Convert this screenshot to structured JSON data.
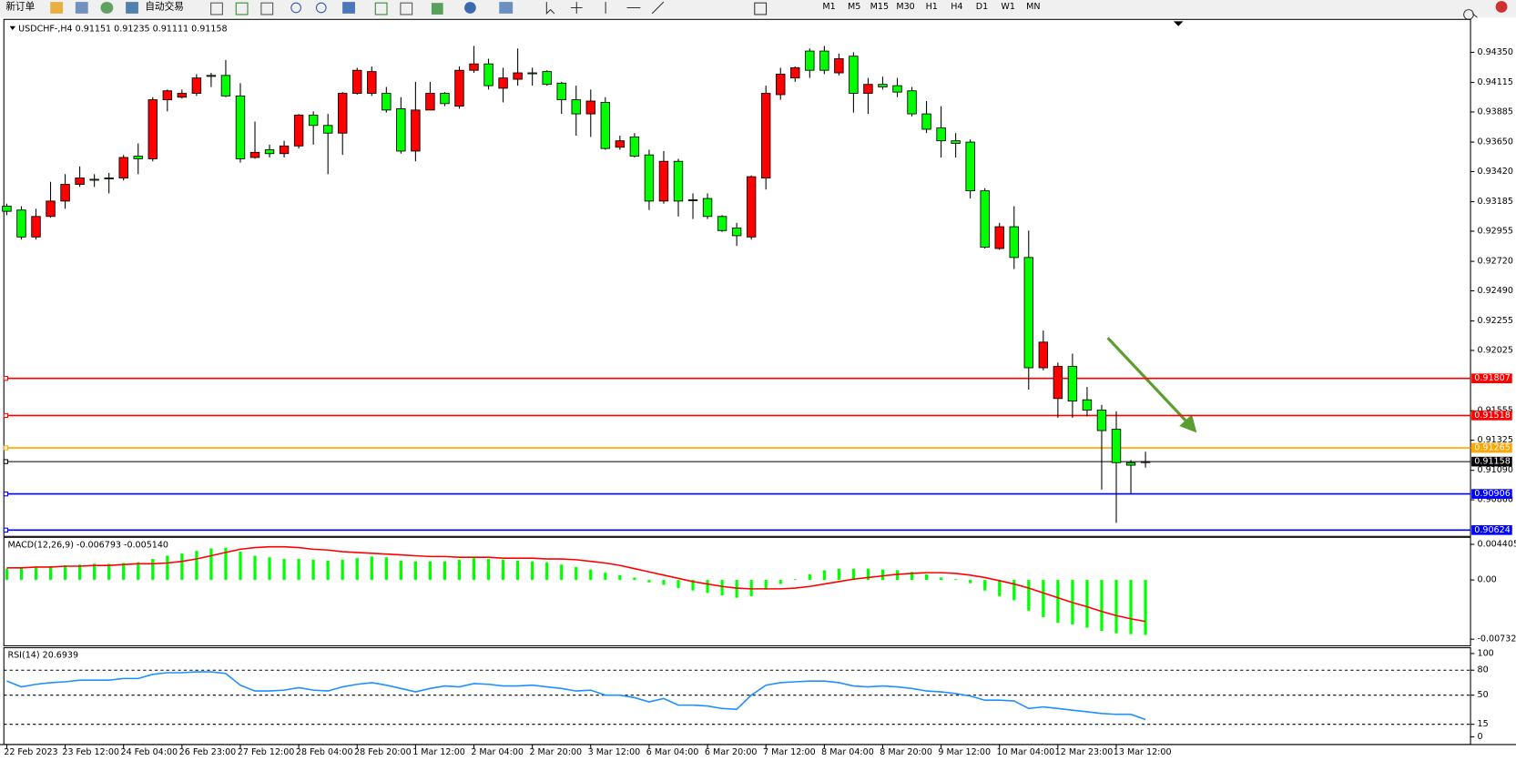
{
  "toolbar": {
    "new_order": "新订单",
    "auto_trading": "自动交易",
    "timeframes": [
      "M1",
      "M5",
      "M15",
      "M30",
      "H1",
      "H4",
      "D1",
      "W1",
      "MN"
    ]
  },
  "chart_data": [
    {
      "type": "candlestick",
      "title": "USDCHF-,H4  0.91151 0.91235 0.91111 0.91158",
      "categories": [
        "22 Feb 2023",
        null,
        null,
        null,
        "23 Feb 12:00",
        null,
        null,
        null,
        "24 Feb 04:00",
        null,
        null,
        null,
        "26 Feb 23:00",
        null,
        null,
        null,
        "27 Feb 12:00",
        null,
        null,
        null,
        "28 Feb 04:00",
        null,
        null,
        null,
        "28 Feb 20:00",
        null,
        null,
        null,
        "1 Mar 12:00",
        null,
        null,
        null,
        "2 Mar 04:00",
        null,
        null,
        null,
        "2 Mar 20:00",
        null,
        null,
        null,
        "3 Mar 12:00",
        null,
        null,
        null,
        "6 Mar 04:00",
        null,
        null,
        null,
        "6 Mar 20:00",
        null,
        null,
        null,
        "7 Mar 12:00",
        null,
        null,
        null,
        "8 Mar 04:00",
        null,
        null,
        null,
        "8 Mar 20:00",
        null,
        null,
        null,
        "9 Mar 12:00",
        null,
        null,
        null,
        "10 Mar 04:00",
        null,
        null,
        null,
        "12 Mar 23:00",
        null,
        null,
        null,
        "13 Mar 12:00",
        null,
        null
      ],
      "open": [
        0.9315,
        0.9312,
        0.9291,
        0.9307,
        0.9319,
        0.9332,
        0.9336,
        0.9337,
        0.9337,
        0.9354,
        0.9352,
        0.9398,
        0.94,
        0.9403,
        0.9417,
        0.9417,
        0.9401,
        0.9353,
        0.9359,
        0.9356,
        0.9362,
        0.9386,
        0.9378,
        0.9372,
        0.9403,
        0.9403,
        0.9403,
        0.9391,
        0.9358,
        0.939,
        0.9403,
        0.9393,
        0.9421,
        0.9426,
        0.9407,
        0.9414,
        0.9419,
        0.942,
        0.9411,
        0.9398,
        0.9387,
        0.9396,
        0.9361,
        0.9369,
        0.9355,
        0.9319,
        0.935,
        0.932,
        0.9321,
        0.9307,
        0.9298,
        0.9291,
        0.9337,
        0.9402,
        0.9415,
        0.9436,
        0.9436,
        0.9419,
        0.9432,
        0.9403,
        0.941,
        0.9409,
        0.9405,
        0.9387,
        0.9376,
        0.9366,
        0.9365,
        0.9327,
        0.9282,
        0.9299,
        0.9275,
        0.9189,
        0.9165,
        0.919,
        0.9164,
        0.9156,
        0.9141,
        0.9115,
        0.91151
      ],
      "high": [
        0.9317,
        0.9315,
        0.9313,
        0.9334,
        0.934,
        0.9346,
        0.934,
        0.9341,
        0.9355,
        0.9364,
        0.94,
        0.9406,
        0.9406,
        0.9418,
        0.9419,
        0.9429,
        0.9411,
        0.9381,
        0.9363,
        0.9366,
        0.9387,
        0.9389,
        0.9387,
        0.9404,
        0.9423,
        0.9424,
        0.9408,
        0.94,
        0.9412,
        0.9412,
        0.9404,
        0.9424,
        0.944,
        0.943,
        0.9423,
        0.9438,
        0.9423,
        0.9421,
        0.9412,
        0.9409,
        0.9406,
        0.94,
        0.937,
        0.9372,
        0.9359,
        0.9358,
        0.9352,
        0.9325,
        0.9325,
        0.9308,
        0.9302,
        0.9339,
        0.9409,
        0.9423,
        0.9424,
        0.9438,
        0.944,
        0.9434,
        0.9435,
        0.9415,
        0.9416,
        0.9415,
        0.9408,
        0.9397,
        0.9393,
        0.9372,
        0.9367,
        0.9329,
        0.9302,
        0.9315,
        0.9296,
        0.9218,
        0.9193,
        0.92,
        0.9174,
        0.916,
        0.9155,
        0.9117,
        0.91235
      ],
      "low": [
        0.9308,
        0.9289,
        0.9289,
        0.9306,
        0.9313,
        0.933,
        0.933,
        0.9325,
        0.9335,
        0.934,
        0.935,
        0.9389,
        0.9399,
        0.9401,
        0.9408,
        0.94,
        0.9349,
        0.9352,
        0.9353,
        0.9353,
        0.936,
        0.9363,
        0.934,
        0.9355,
        0.9402,
        0.9401,
        0.9388,
        0.9356,
        0.935,
        0.939,
        0.9393,
        0.9391,
        0.9419,
        0.9406,
        0.9396,
        0.9409,
        0.9409,
        0.9409,
        0.9387,
        0.937,
        0.9369,
        0.9359,
        0.9359,
        0.9353,
        0.9312,
        0.9317,
        0.9307,
        0.9305,
        0.9305,
        0.9295,
        0.9284,
        0.9289,
        0.9328,
        0.9398,
        0.9412,
        0.9415,
        0.9418,
        0.9417,
        0.9388,
        0.9387,
        0.9406,
        0.94,
        0.9385,
        0.9372,
        0.9353,
        0.9353,
        0.9321,
        0.9282,
        0.9281,
        0.9266,
        0.9172,
        0.9187,
        0.915,
        0.915,
        0.9151,
        0.9094,
        0.9068,
        0.9091,
        0.91111
      ],
      "close": [
        0.9311,
        0.9291,
        0.9307,
        0.9319,
        0.9332,
        0.9337,
        0.9336,
        0.9337,
        0.9353,
        0.9352,
        0.9398,
        0.9405,
        0.9403,
        0.9415,
        0.9417,
        0.9401,
        0.9352,
        0.9357,
        0.9356,
        0.9362,
        0.9386,
        0.9378,
        0.9372,
        0.9403,
        0.9421,
        0.942,
        0.939,
        0.9358,
        0.939,
        0.9403,
        0.9395,
        0.9421,
        0.9426,
        0.9409,
        0.9415,
        0.9419,
        0.9419,
        0.941,
        0.9398,
        0.9387,
        0.9397,
        0.936,
        0.9366,
        0.9354,
        0.9319,
        0.935,
        0.9319,
        0.932,
        0.9307,
        0.9296,
        0.9292,
        0.9338,
        0.9403,
        0.9418,
        0.9423,
        0.9421,
        0.9421,
        0.943,
        0.9403,
        0.941,
        0.9408,
        0.9404,
        0.9387,
        0.9375,
        0.9366,
        0.9364,
        0.9327,
        0.9283,
        0.9299,
        0.9275,
        0.9189,
        0.9209,
        0.919,
        0.9163,
        0.9156,
        0.914,
        0.9115,
        0.9113,
        0.91158
      ],
      "up_color": "#ff0000",
      "down_color": "#00ff00",
      "ylim": [
        0.9059,
        0.94592
      ],
      "yticks": [
        {
          "value": 0.9435,
          "label": "0.94350"
        },
        {
          "value": 0.94115,
          "label": "0.94115"
        },
        {
          "value": 0.93885,
          "label": "0.93885"
        },
        {
          "value": 0.9365,
          "label": "0.93650"
        },
        {
          "value": 0.9342,
          "label": "0.93420"
        },
        {
          "value": 0.93185,
          "label": "0.93185"
        },
        {
          "value": 0.92955,
          "label": "0.92955"
        },
        {
          "value": 0.9272,
          "label": "0.92720"
        },
        {
          "value": 0.9249,
          "label": "0.92490"
        },
        {
          "value": 0.92255,
          "label": "0.92255"
        },
        {
          "value": 0.92025,
          "label": "0.92025"
        },
        {
          "value": 0.91555,
          "label": "0.91555"
        },
        {
          "value": 0.91325,
          "label": "0.91325"
        },
        {
          "value": 0.9109,
          "label": "0.91090"
        },
        {
          "value": 0.9086,
          "label": "0.90860"
        }
      ],
      "levels": [
        {
          "value": 0.91807,
          "color": "#ff0000"
        },
        {
          "value": 0.91518,
          "color": "#ff0000"
        },
        {
          "value": 0.91265,
          "color": "#ffa500"
        },
        {
          "value": 0.91158,
          "color": "#000000"
        },
        {
          "value": 0.90906,
          "color": "#0000ff"
        },
        {
          "value": 0.90624,
          "color": "#0000ff"
        }
      ]
    },
    {
      "type": "macd",
      "title": "MACD(12,26,9) -0.006793 -0.005140",
      "series": [
        {
          "color": "#00ff00",
          "values": [
            0.0014,
            0.0015,
            0.0016,
            0.0017,
            0.0018,
            0.0019,
            0.002,
            0.002,
            0.0021,
            0.0022,
            0.0026,
            0.003,
            0.0033,
            0.0036,
            0.0039,
            0.004,
            0.0035,
            0.003,
            0.0028,
            0.0026,
            0.0026,
            0.0025,
            0.0024,
            0.0025,
            0.0027,
            0.0029,
            0.0028,
            0.0024,
            0.0023,
            0.0023,
            0.0023,
            0.0025,
            0.0027,
            0.0026,
            0.0025,
            0.0024,
            0.0023,
            0.0022,
            0.0019,
            0.0016,
            0.0013,
            0.0009,
            0.0006,
            0.0003,
            -0.0003,
            -0.0006,
            -0.001,
            -0.0013,
            -0.0016,
            -0.0019,
            -0.0022,
            -0.002,
            -0.0012,
            -0.0005,
            0.0001,
            0.0007,
            0.0012,
            0.0014,
            0.0014,
            0.0014,
            0.0013,
            0.0012,
            0.001,
            0.0007,
            0.0003,
            0.0001,
            -0.0004,
            -0.0013,
            -0.002,
            -0.0025,
            -0.0038,
            -0.0046,
            -0.0053,
            -0.0055,
            -0.0059,
            -0.0063,
            -0.0066,
            -0.0067,
            -0.006793
          ]
        },
        {
          "color": "#ff0000",
          "values": [
            0.0015,
            0.0015,
            0.0016,
            0.0016,
            0.0017,
            0.0017,
            0.0018,
            0.0018,
            0.0019,
            0.002,
            0.002,
            0.0021,
            0.0023,
            0.0026,
            0.003,
            0.0034,
            0.0038,
            0.004,
            0.0041,
            0.0041,
            0.004,
            0.0038,
            0.0037,
            0.0035,
            0.0034,
            0.0033,
            0.0032,
            0.0031,
            0.003,
            0.0029,
            0.0029,
            0.0028,
            0.0028,
            0.0028,
            0.0027,
            0.0027,
            0.0027,
            0.0026,
            0.0026,
            0.0025,
            0.0023,
            0.0021,
            0.0018,
            0.0014,
            0.001,
            0.0006,
            0.0002,
            -0.0002,
            -0.0005,
            -0.0008,
            -0.001,
            -0.0011,
            -0.0011,
            -0.0011,
            -0.001,
            -0.0008,
            -0.0005,
            -0.0002,
            0.0001,
            0.0003,
            0.0005,
            0.0007,
            0.0008,
            0.0009,
            0.0009,
            0.0008,
            0.0006,
            0.0003,
            -0.0001,
            -0.0005,
            -0.001,
            -0.0016,
            -0.0022,
            -0.0028,
            -0.0033,
            -0.0039,
            -0.0044,
            -0.0048,
            -0.00514
          ]
        }
      ],
      "ylim": [
        -0.00802,
        0.00515
      ],
      "yticks": [
        0.004405,
        {
          "value": 0,
          "label": "0.00"
        },
        -0.007327
      ]
    },
    {
      "type": "line",
      "title": "RSI(14) 20.6939",
      "series": [
        {
          "color": "#1e90ff",
          "values": [
            67,
            60,
            63,
            65,
            66,
            68,
            68,
            68,
            70,
            70,
            75,
            77,
            77,
            78,
            78,
            76,
            62,
            55,
            55,
            56,
            59,
            56,
            55,
            60,
            63,
            65,
            62,
            58,
            54,
            58,
            61,
            60,
            64,
            63,
            61,
            61,
            62,
            60,
            58,
            55,
            56,
            50,
            50,
            47,
            42,
            46,
            38,
            38,
            37,
            34,
            33,
            50,
            62,
            65,
            66,
            67,
            67,
            65,
            61,
            60,
            61,
            60,
            58,
            55,
            54,
            52,
            49,
            44,
            44,
            43,
            34,
            36,
            34,
            32,
            30,
            28,
            27,
            27,
            20.6939
          ]
        }
      ],
      "ylim": [
        -8.1,
        105.8
      ],
      "yticks": [
        100,
        80,
        50,
        15,
        0
      ]
    }
  ]
}
